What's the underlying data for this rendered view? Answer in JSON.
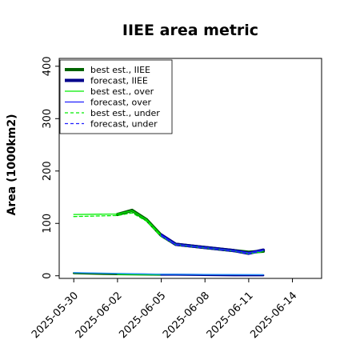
{
  "chart_data": {
    "type": "line",
    "title": "IIEE area metric",
    "xlabel": "",
    "ylabel": "Area (1000km2)",
    "ylim": [
      -5,
      415
    ],
    "xlim": [
      "2025-05-29T00:00",
      "2025-06-16T00:00"
    ],
    "yticks": [
      "0",
      "100",
      "200",
      "300",
      "400"
    ],
    "xticks": [
      "2025-05-30",
      "2025-06-02",
      "2025-06-05",
      "2025-06-08",
      "2025-06-11",
      "2025-06-14"
    ],
    "highlighted_xtick": "2025-06-05",
    "highlight_color": "#2e8b2e",
    "grid": false,
    "legend_position": "top-left",
    "legend": [
      {
        "label": "best est., IIEE",
        "color": "#006400",
        "style": "thick"
      },
      {
        "label": "forecast, IIEE",
        "color": "#00008b",
        "style": "thick"
      },
      {
        "label": "best est., over",
        "color": "#00ee00",
        "style": "solid"
      },
      {
        "label": "forecast, over",
        "color": "#1f1fff",
        "style": "solid"
      },
      {
        "label": "best est., under",
        "color": "#00ee00",
        "style": "dashed"
      },
      {
        "label": "forecast, under",
        "color": "#1f1fff",
        "style": "dashed"
      }
    ],
    "series": [
      {
        "name": "best est., IIEE",
        "color": "#006400",
        "width": 4,
        "dash": "",
        "x": [
          "2025-06-02",
          "2025-06-03",
          "2025-06-04",
          "2025-06-05",
          "2025-06-06",
          "2025-06-11",
          "2025-06-12"
        ],
        "y": [
          117,
          125,
          107,
          77,
          60,
          45,
          47
        ]
      },
      {
        "name": "forecast, IIEE",
        "color": "#00008b",
        "width": 4,
        "dash": "",
        "x": [
          "2025-06-05",
          "2025-06-06",
          "2025-06-10",
          "2025-06-11",
          "2025-06-12"
        ],
        "y": [
          78,
          60,
          48,
          43,
          49
        ]
      },
      {
        "name": "best est., over",
        "color": "#00ee00",
        "width": 1.3,
        "dash": "",
        "x": [
          "2025-05-30",
          "2025-06-02",
          "2025-06-03",
          "2025-06-04",
          "2025-06-05",
          "2025-06-06",
          "2025-06-10",
          "2025-06-11",
          "2025-06-12"
        ],
        "y": [
          117,
          118,
          124,
          107,
          77,
          60,
          48,
          43,
          47
        ]
      },
      {
        "name": "forecast, over",
        "color": "#1f1fff",
        "width": 1.3,
        "dash": "",
        "x": [
          "2025-06-05",
          "2025-06-06",
          "2025-06-10",
          "2025-06-11",
          "2025-06-12"
        ],
        "y": [
          78,
          60,
          48,
          44,
          49
        ]
      },
      {
        "name": "best est., under",
        "color": "#00ee00",
        "width": 1.3,
        "dash": "4,3",
        "x": [
          "2025-05-30",
          "2025-06-02",
          "2025-06-03",
          "2025-06-04",
          "2025-06-05",
          "2025-06-06",
          "2025-06-10",
          "2025-06-11",
          "2025-06-12"
        ],
        "y": [
          113,
          115,
          120,
          104,
          75,
          59,
          47,
          42,
          46
        ]
      },
      {
        "name": "forecast, under",
        "color": "#1f1fff",
        "width": 1.3,
        "dash": "4,3",
        "x": [
          "2025-06-05",
          "2025-06-06",
          "2025-06-10",
          "2025-06-11",
          "2025-06-12"
        ],
        "y": [
          76,
          59,
          47,
          42,
          48
        ]
      },
      {
        "name": "best est., IIEE (under component)",
        "color": "#006400",
        "width": 2.5,
        "dash": "",
        "x": [
          "2025-05-30",
          "2025-06-02",
          "2025-06-05"
        ],
        "y": [
          5,
          3,
          2
        ]
      },
      {
        "name": "best est., over (low)",
        "color": "#00ee00",
        "width": 1.3,
        "dash": "",
        "x": [
          "2025-06-02",
          "2025-06-05",
          "2025-06-12"
        ],
        "y": [
          3,
          2,
          1
        ]
      },
      {
        "name": "forecast, under (low)",
        "color": "#00008b",
        "width": 2.5,
        "dash": "",
        "x": [
          "2025-06-05",
          "2025-06-06",
          "2025-06-10",
          "2025-06-11",
          "2025-06-12"
        ],
        "y": [
          2,
          2,
          1,
          1,
          1
        ]
      },
      {
        "name": "forecast, over (low)",
        "color": "#1f90ff",
        "width": 1.3,
        "dash": "",
        "x": [
          "2025-05-30",
          "2025-06-05",
          "2025-06-12"
        ],
        "y": [
          6,
          3,
          2
        ]
      }
    ]
  }
}
